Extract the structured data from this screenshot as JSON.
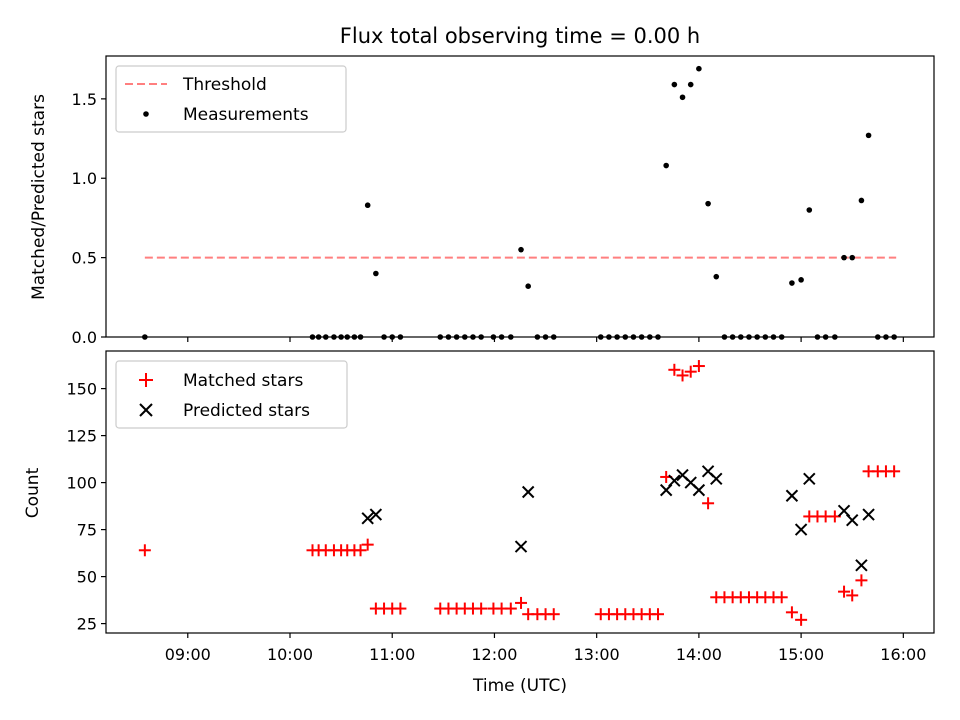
{
  "figure": {
    "title": "Flux total observing time = 0.00 h",
    "xlabel": "Time (UTC)"
  },
  "chart_data": [
    {
      "type": "scatter",
      "title": "Flux total observing time = 0.00 h",
      "ylabel": "Matched/Predicted stars",
      "xlim": [
        8.2,
        16.3
      ],
      "ylim": [
        0,
        1.77
      ],
      "yticks": [
        0.0,
        0.5,
        1.0,
        1.5
      ],
      "ytick_labels": [
        "0.0",
        "0.5",
        "1.0",
        "1.5"
      ],
      "legend_position": "top-left",
      "threshold": {
        "name": "Threshold",
        "y": 0.5,
        "x_range": [
          8.58,
          15.93
        ],
        "color": "#ff7f7f",
        "style": "dashed"
      },
      "series": [
        {
          "name": "Measurements",
          "marker": "dot",
          "color": "#000000",
          "x": [
            8.58,
            10.22,
            10.28,
            10.35,
            10.43,
            10.5,
            10.56,
            10.63,
            10.69,
            10.76,
            10.84,
            10.92,
            11.0,
            11.08,
            11.47,
            11.55,
            11.63,
            11.71,
            11.79,
            11.87,
            11.99,
            12.07,
            12.16,
            12.26,
            12.33,
            12.42,
            12.5,
            12.58,
            13.04,
            13.12,
            13.2,
            13.28,
            13.36,
            13.44,
            13.52,
            13.6,
            13.68,
            13.76,
            13.84,
            13.92,
            14.0,
            14.09,
            14.17,
            14.25,
            14.33,
            14.41,
            14.49,
            14.57,
            14.65,
            14.73,
            14.81,
            14.91,
            15.0,
            15.08,
            15.16,
            15.24,
            15.33,
            15.42,
            15.5,
            15.59,
            15.66,
            15.75,
            15.83,
            15.91
          ],
          "y": [
            0.0,
            0.0,
            0.0,
            0.0,
            0.0,
            0.0,
            0.0,
            0.0,
            0.0,
            0.83,
            0.4,
            0.0,
            0.0,
            0.0,
            0.0,
            0.0,
            0.0,
            0.0,
            0.0,
            0.0,
            0.0,
            0.0,
            0.0,
            0.55,
            0.32,
            0.0,
            0.0,
            0.0,
            0.0,
            0.0,
            0.0,
            0.0,
            0.0,
            0.0,
            0.0,
            0.0,
            1.08,
            1.59,
            1.51,
            1.59,
            1.69,
            0.84,
            0.38,
            0.0,
            0.0,
            0.0,
            0.0,
            0.0,
            0.0,
            0.0,
            0.0,
            0.34,
            0.36,
            0.8,
            0.0,
            0.0,
            0.0,
            0.5,
            0.5,
            0.86,
            1.27,
            0.0,
            0.0,
            0.0
          ]
        }
      ]
    },
    {
      "type": "scatter",
      "ylabel": "Count",
      "xlabel": "Time (UTC)",
      "xlim": [
        8.2,
        16.3
      ],
      "ylim": [
        20,
        170
      ],
      "yticks": [
        25,
        50,
        75,
        100,
        125,
        150
      ],
      "ytick_labels": [
        "25",
        "50",
        "75",
        "100",
        "125",
        "150"
      ],
      "xticks": [
        9,
        10,
        11,
        12,
        13,
        14,
        15,
        16
      ],
      "xtick_labels": [
        "09:00",
        "10:00",
        "11:00",
        "12:00",
        "13:00",
        "14:00",
        "15:00",
        "16:00"
      ],
      "legend_position": "top-left",
      "series": [
        {
          "name": "Matched stars",
          "marker": "plus",
          "color": "#ff0000",
          "x": [
            8.58,
            10.22,
            10.28,
            10.35,
            10.43,
            10.5,
            10.56,
            10.63,
            10.69,
            10.76,
            10.84,
            10.92,
            11.0,
            11.08,
            11.47,
            11.55,
            11.63,
            11.71,
            11.79,
            11.87,
            11.99,
            12.07,
            12.16,
            12.26,
            12.33,
            12.42,
            12.5,
            12.58,
            13.04,
            13.12,
            13.2,
            13.28,
            13.36,
            13.44,
            13.52,
            13.6,
            13.68,
            13.76,
            13.84,
            13.92,
            14.0,
            14.09,
            14.17,
            14.25,
            14.33,
            14.41,
            14.49,
            14.57,
            14.65,
            14.73,
            14.81,
            14.91,
            15.0,
            15.08,
            15.16,
            15.24,
            15.33,
            15.42,
            15.5,
            15.59,
            15.66,
            15.75,
            15.83,
            15.91
          ],
          "y": [
            64,
            64,
            64,
            64,
            64,
            64,
            64,
            64,
            64,
            67,
            33,
            33,
            33,
            33,
            33,
            33,
            33,
            33,
            33,
            33,
            33,
            33,
            33,
            36,
            30,
            30,
            30,
            30,
            30,
            30,
            30,
            30,
            30,
            30,
            30,
            30,
            103,
            160,
            157,
            159,
            162,
            89,
            39,
            39,
            39,
            39,
            39,
            39,
            39,
            39,
            39,
            31,
            27,
            82,
            82,
            82,
            82,
            42,
            40,
            48,
            106,
            106,
            106,
            106
          ]
        },
        {
          "name": "Predicted stars",
          "marker": "x",
          "color": "#000000",
          "x": [
            10.76,
            10.84,
            12.26,
            12.33,
            13.68,
            13.76,
            13.84,
            13.92,
            14.0,
            14.09,
            14.17,
            14.91,
            15.0,
            15.08,
            15.42,
            15.5,
            15.59,
            15.66
          ],
          "y": [
            81,
            83,
            66,
            95,
            96,
            101,
            104,
            100,
            96,
            106,
            102,
            93,
            75,
            102,
            85,
            80,
            56,
            83
          ]
        }
      ]
    }
  ]
}
